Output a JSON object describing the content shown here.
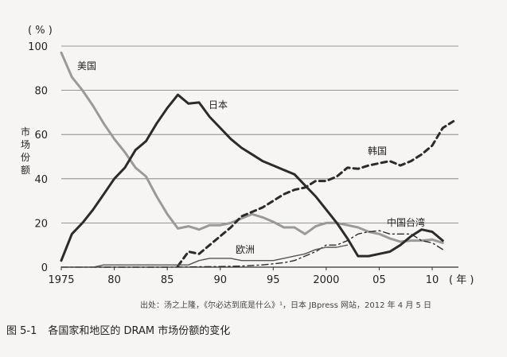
{
  "chart_data": {
    "type": "line",
    "y_unit": "( % )",
    "ylabel": "市场份额",
    "x_unit": "( 年 )",
    "xlim": [
      1975,
      2012
    ],
    "ylim": [
      0,
      100
    ],
    "x_ticks": [
      1975,
      1980,
      1985,
      1990,
      1995,
      2000,
      2005,
      2010
    ],
    "x_tick_labels": [
      "1975",
      "80",
      "85",
      "90",
      "95",
      "2000",
      "05",
      "10"
    ],
    "y_ticks": [
      0,
      20,
      40,
      60,
      80,
      100
    ],
    "y_tick_labels": [
      "0",
      "20",
      "40",
      "60",
      "80",
      "100"
    ],
    "grid": true,
    "series": [
      {
        "name": "美国",
        "color": "#9a9a9a",
        "style": "solid",
        "points": [
          [
            1975,
            97
          ],
          [
            1976,
            86
          ],
          [
            1977,
            80
          ],
          [
            1978,
            73
          ],
          [
            1979,
            65
          ],
          [
            1980,
            58
          ],
          [
            1981,
            52
          ],
          [
            1982,
            45
          ],
          [
            1983,
            41
          ],
          [
            1984,
            32
          ],
          [
            1985,
            24
          ],
          [
            1986,
            17.5
          ],
          [
            1987,
            18.5
          ],
          [
            1988,
            17
          ],
          [
            1989,
            19
          ],
          [
            1990,
            19
          ],
          [
            1991,
            20
          ],
          [
            1992,
            22
          ],
          [
            1993,
            24
          ],
          [
            1994,
            22.5
          ],
          [
            1995,
            20.5
          ],
          [
            1996,
            18
          ],
          [
            1997,
            18
          ],
          [
            1998,
            15
          ],
          [
            1999,
            18.5
          ],
          [
            2000,
            20
          ],
          [
            2001,
            20
          ],
          [
            2002,
            19
          ],
          [
            2003,
            18
          ],
          [
            2004,
            16
          ],
          [
            2005,
            15
          ],
          [
            2006,
            13
          ],
          [
            2007,
            11.5
          ],
          [
            2008,
            12
          ],
          [
            2009,
            12
          ],
          [
            2010,
            12.5
          ],
          [
            2011,
            11
          ]
        ]
      },
      {
        "name": "日本",
        "color": "#2b2b2b",
        "style": "solid",
        "points": [
          [
            1975,
            3
          ],
          [
            1976,
            15
          ],
          [
            1977,
            20
          ],
          [
            1978,
            26
          ],
          [
            1979,
            33
          ],
          [
            1980,
            40
          ],
          [
            1981,
            45
          ],
          [
            1982,
            53
          ],
          [
            1983,
            57
          ],
          [
            1984,
            65
          ],
          [
            1985,
            72
          ],
          [
            1986,
            78
          ],
          [
            1987,
            74
          ],
          [
            1988,
            74.5
          ],
          [
            1989,
            68
          ],
          [
            1990,
            63
          ],
          [
            1991,
            58
          ],
          [
            1992,
            54
          ],
          [
            1993,
            51
          ],
          [
            1994,
            48
          ],
          [
            1995,
            46
          ],
          [
            1996,
            44
          ],
          [
            1997,
            42
          ],
          [
            1998,
            37
          ],
          [
            1999,
            32
          ],
          [
            2000,
            26
          ],
          [
            2001,
            20
          ],
          [
            2002,
            13
          ],
          [
            2003,
            5
          ],
          [
            2004,
            5
          ],
          [
            2005,
            6
          ],
          [
            2006,
            7
          ],
          [
            2007,
            10
          ],
          [
            2008,
            14
          ],
          [
            2009,
            17
          ],
          [
            2010,
            16
          ],
          [
            2011,
            12
          ]
        ]
      },
      {
        "name": "韩国",
        "color": "#2b2b2b",
        "style": "dashed",
        "points": [
          [
            1986,
            0.5
          ],
          [
            1987,
            7
          ],
          [
            1988,
            6
          ],
          [
            1989,
            10
          ],
          [
            1990,
            14
          ],
          [
            1991,
            18
          ],
          [
            1992,
            23
          ],
          [
            1993,
            25
          ],
          [
            1994,
            27
          ],
          [
            1995,
            30
          ],
          [
            1996,
            33
          ],
          [
            1997,
            35
          ],
          [
            1998,
            36
          ],
          [
            1999,
            39
          ],
          [
            2000,
            39
          ],
          [
            2001,
            41
          ],
          [
            2002,
            45
          ],
          [
            2003,
            44.5
          ],
          [
            2004,
            46
          ],
          [
            2005,
            47
          ],
          [
            2006,
            48
          ],
          [
            2007,
            46
          ],
          [
            2008,
            48
          ],
          [
            2009,
            51
          ],
          [
            2010,
            55
          ],
          [
            2011,
            63
          ],
          [
            2012,
            66
          ]
        ]
      },
      {
        "name": "中国台湾",
        "color": "#2b2b2b",
        "style": "dashdot",
        "points": [
          [
            1975,
            0
          ],
          [
            1980,
            0
          ],
          [
            1985,
            0
          ],
          [
            1990,
            0.3
          ],
          [
            1992,
            0.5
          ],
          [
            1994,
            1
          ],
          [
            1996,
            2
          ],
          [
            1997,
            3
          ],
          [
            1998,
            5
          ],
          [
            1999,
            7
          ],
          [
            2000,
            10
          ],
          [
            2001,
            10
          ],
          [
            2002,
            12
          ],
          [
            2003,
            15
          ],
          [
            2004,
            16
          ],
          [
            2005,
            16.5
          ],
          [
            2006,
            15
          ],
          [
            2007,
            15
          ],
          [
            2008,
            15
          ],
          [
            2009,
            12
          ],
          [
            2010,
            11
          ],
          [
            2011,
            8
          ]
        ]
      },
      {
        "name": "欧洲",
        "color": "#555555",
        "style": "solid",
        "points": [
          [
            1975,
            0
          ],
          [
            1978,
            0
          ],
          [
            1979,
            1
          ],
          [
            1980,
            1
          ],
          [
            1981,
            1
          ],
          [
            1982,
            1
          ],
          [
            1983,
            1
          ],
          [
            1984,
            1
          ],
          [
            1985,
            1
          ],
          [
            1986,
            1
          ],
          [
            1987,
            1
          ],
          [
            1988,
            3
          ],
          [
            1989,
            4
          ],
          [
            1990,
            4
          ],
          [
            1991,
            4
          ],
          [
            1992,
            3
          ],
          [
            1993,
            3
          ],
          [
            1994,
            3
          ],
          [
            1995,
            3
          ],
          [
            1996,
            4
          ],
          [
            1997,
            5
          ],
          [
            1998,
            6
          ],
          [
            1999,
            8
          ],
          [
            2000,
            9
          ],
          [
            2001,
            9
          ],
          [
            2002,
            10
          ]
        ]
      }
    ]
  },
  "source_text": "出处：汤之上隆，《尔必达到底是什么》¹，日本 JBpress 网站，2012 年 4 月 5 日",
  "caption": {
    "number": "图 5-1",
    "title": "各国家和地区的 DRAM 市场份额的变化"
  }
}
